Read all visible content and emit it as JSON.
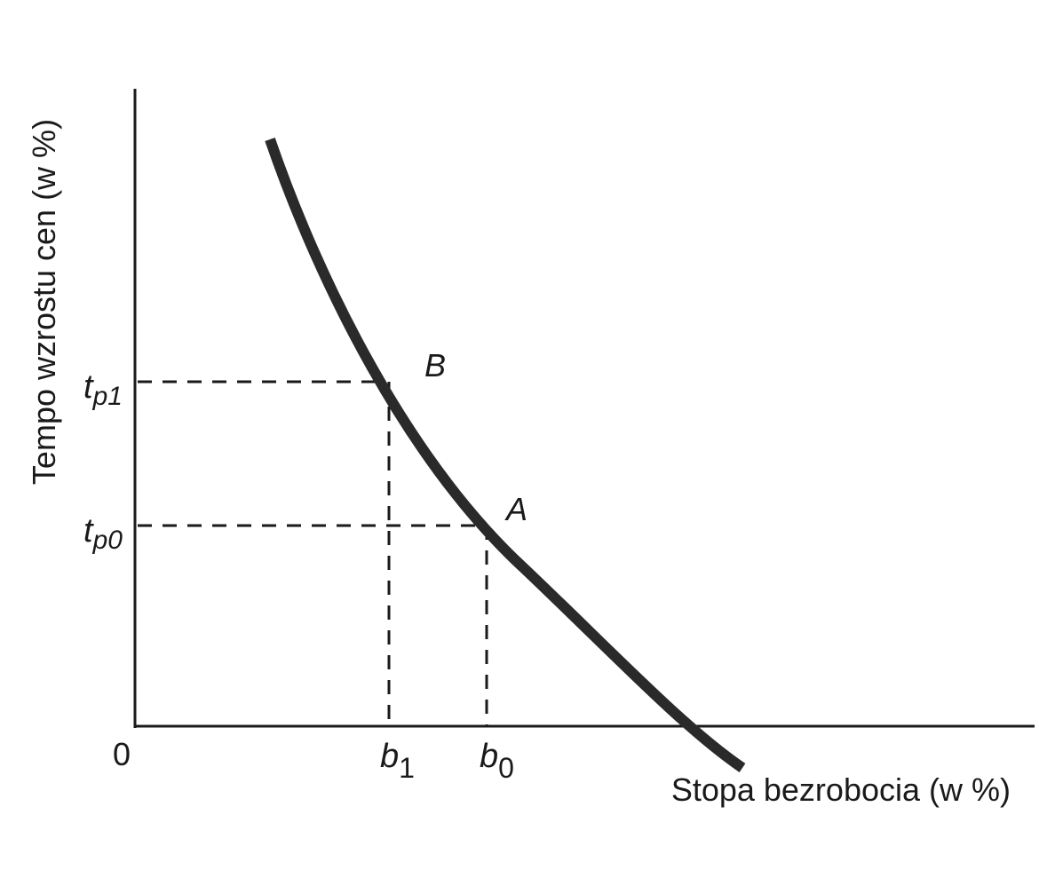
{
  "diagram": {
    "x_axis_label": "Stopa bezrobocia (w %)",
    "y_axis_label": "Tempo wzrostu cen (w %)",
    "origin_label": "0",
    "points": [
      {
        "name": "B",
        "x_label": {
          "base": "b",
          "sub": "1"
        },
        "y_label": {
          "base": "t",
          "sub": "p1"
        }
      },
      {
        "name": "A",
        "x_label": {
          "base": "b",
          "sub": "0"
        },
        "y_label": {
          "base": "t",
          "sub": "p0"
        }
      }
    ]
  }
}
